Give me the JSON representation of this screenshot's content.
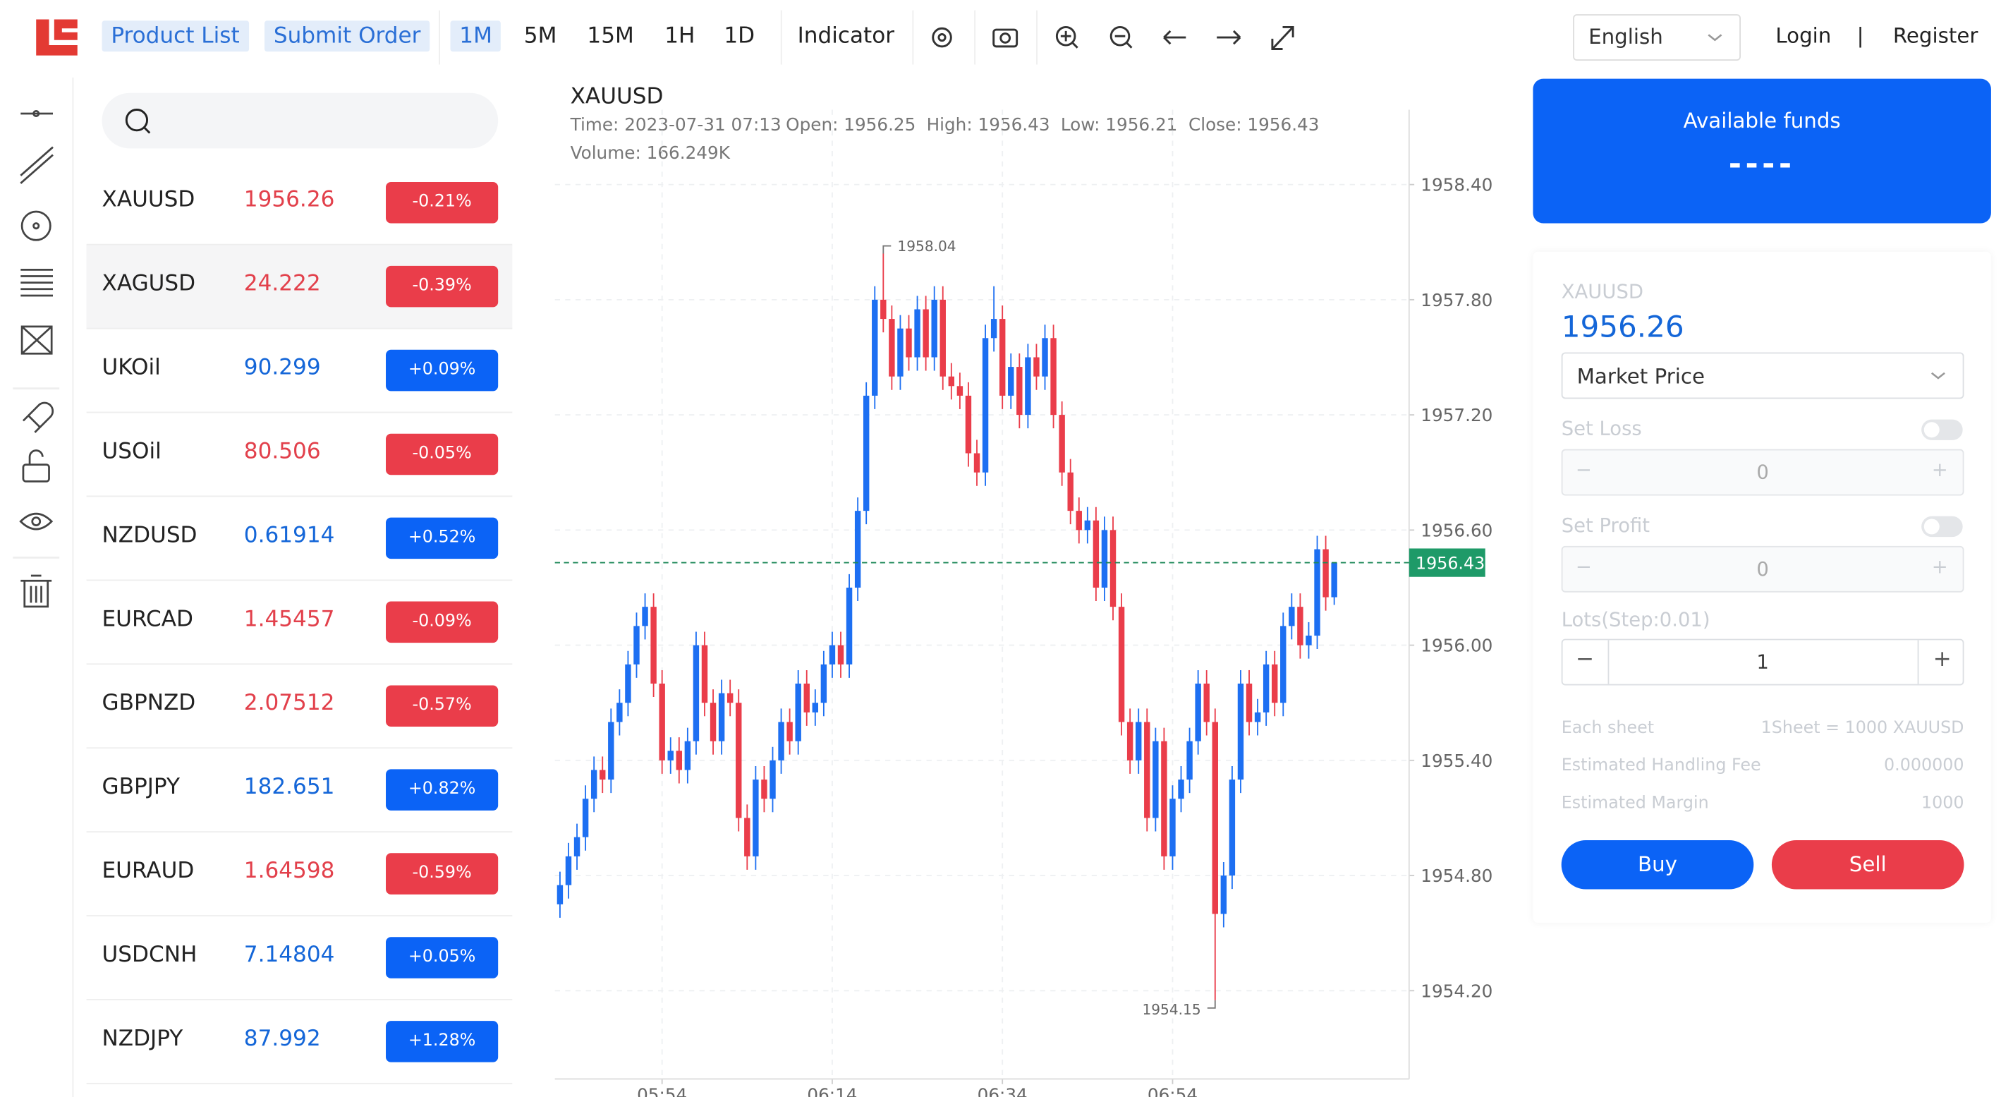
{
  "nav": {
    "product_list": "Product List",
    "submit_order": "Submit Order",
    "periods": [
      "1M",
      "5M",
      "15M",
      "1H",
      "1D"
    ],
    "indicator": "Indicator",
    "language": "English",
    "login": "Login",
    "separator": "|",
    "register": "Register"
  },
  "instruments": [
    {
      "name": "XAUUSD",
      "price": "1956.26",
      "change": "-0.21%"
    },
    {
      "name": "XAGUSD",
      "price": "24.222",
      "change": "-0.39%"
    },
    {
      "name": "UKOil",
      "price": "90.299",
      "change": "+0.09%"
    },
    {
      "name": "USOil",
      "price": "80.506",
      "change": "-0.05%"
    },
    {
      "name": "NZDUSD",
      "price": "0.61914",
      "change": "+0.52%"
    },
    {
      "name": "EURCAD",
      "price": "1.45457",
      "change": "-0.09%"
    },
    {
      "name": "GBPNZD",
      "price": "2.07512",
      "change": "-0.57%"
    },
    {
      "name": "GBPJPY",
      "price": "182.651",
      "change": "+0.82%"
    },
    {
      "name": "EURAUD",
      "price": "1.64598",
      "change": "-0.59%"
    },
    {
      "name": "USDCNH",
      "price": "7.14804",
      "change": "+0.05%"
    },
    {
      "name": "NZDJPY",
      "price": "87.992",
      "change": "+1.28%"
    }
  ],
  "chart_data": {
    "type": "candlestick",
    "title": "XAUUSD",
    "info": [
      "Time: 2023-07-31 07:13",
      "Open: 1956.25",
      "High: 1956.43",
      "Low: 1956.21",
      "Close: 1956.43"
    ],
    "volume": "Volume: 166.249K",
    "up_color": "#1d6ff2",
    "down_color": "#ea3d4a",
    "ylim": [
      1953.74,
      1958.79
    ],
    "yticks": [
      {
        "value": 1954.2,
        "label": "1954.20"
      },
      {
        "value": 1954.8,
        "label": "1954.80"
      },
      {
        "value": 1955.4,
        "label": "1955.40"
      },
      {
        "value": 1956,
        "label": "1956.00"
      },
      {
        "value": 1956.6,
        "label": "1956.60"
      },
      {
        "value": 1957.2,
        "label": "1957.20"
      },
      {
        "value": 1957.8,
        "label": "1957.80"
      },
      {
        "value": 1958.4,
        "label": "1958.40"
      }
    ],
    "xlim": [
      -0.6,
      99.8
    ],
    "xticks": [
      {
        "value": 12,
        "label": "05:54"
      },
      {
        "value": 32,
        "label": "06:14"
      },
      {
        "value": 52,
        "label": "06:34"
      },
      {
        "value": 72,
        "label": "06:54"
      }
    ],
    "grid": true,
    "max_marker": 1958.04,
    "min_marker": 1954.15,
    "last_price": 1956.43,
    "candles": [
      [
        1954.65,
        1954.82,
        1954.58,
        1954.75
      ],
      [
        1954.75,
        1954.97,
        1954.68,
        1954.9
      ],
      [
        1954.9,
        1955.07,
        1954.83,
        1955.0
      ],
      [
        1955.0,
        1955.27,
        1954.93,
        1955.2
      ],
      [
        1955.2,
        1955.42,
        1955.13,
        1955.35
      ],
      [
        1955.35,
        1955.42,
        1955.23,
        1955.3
      ],
      [
        1955.3,
        1955.67,
        1955.23,
        1955.6
      ],
      [
        1955.6,
        1955.77,
        1955.53,
        1955.7
      ],
      [
        1955.7,
        1955.97,
        1955.63,
        1955.9
      ],
      [
        1955.9,
        1956.17,
        1955.83,
        1956.1
      ],
      [
        1956.1,
        1956.27,
        1956.03,
        1956.2
      ],
      [
        1956.2,
        1956.27,
        1955.73,
        1955.8
      ],
      [
        1955.8,
        1955.87,
        1955.33,
        1955.4
      ],
      [
        1955.4,
        1955.52,
        1955.33,
        1955.45
      ],
      [
        1955.45,
        1955.52,
        1955.28,
        1955.35
      ],
      [
        1955.35,
        1955.57,
        1955.28,
        1955.5
      ],
      [
        1955.5,
        1956.07,
        1955.43,
        1956.0
      ],
      [
        1956.0,
        1956.07,
        1955.63,
        1955.7
      ],
      [
        1955.7,
        1955.77,
        1955.43,
        1955.5
      ],
      [
        1955.5,
        1955.82,
        1955.43,
        1955.75
      ],
      [
        1955.75,
        1955.82,
        1955.63,
        1955.7
      ],
      [
        1955.7,
        1955.77,
        1955.03,
        1955.1
      ],
      [
        1955.1,
        1955.17,
        1954.83,
        1954.9
      ],
      [
        1954.9,
        1955.37,
        1954.83,
        1955.3
      ],
      [
        1955.3,
        1955.37,
        1955.13,
        1955.2
      ],
      [
        1955.2,
        1955.47,
        1955.13,
        1955.4
      ],
      [
        1955.4,
        1955.67,
        1955.33,
        1955.6
      ],
      [
        1955.6,
        1955.67,
        1955.43,
        1955.5
      ],
      [
        1955.5,
        1955.87,
        1955.43,
        1955.8
      ],
      [
        1955.8,
        1955.87,
        1955.58,
        1955.65
      ],
      [
        1955.65,
        1955.77,
        1955.58,
        1955.7
      ],
      [
        1955.7,
        1955.97,
        1955.63,
        1955.9
      ],
      [
        1955.9,
        1956.07,
        1955.83,
        1956.0
      ],
      [
        1956.0,
        1956.07,
        1955.83,
        1955.9
      ],
      [
        1955.9,
        1956.37,
        1955.83,
        1956.3
      ],
      [
        1956.3,
        1956.77,
        1956.23,
        1956.7
      ],
      [
        1956.7,
        1957.37,
        1956.63,
        1957.3
      ],
      [
        1957.3,
        1957.87,
        1957.23,
        1957.8
      ],
      [
        1957.8,
        1958.04,
        1957.63,
        1957.7
      ],
      [
        1957.7,
        1957.77,
        1957.33,
        1957.4
      ],
      [
        1957.4,
        1957.72,
        1957.33,
        1957.65
      ],
      [
        1957.65,
        1957.72,
        1957.43,
        1957.5
      ],
      [
        1957.5,
        1957.82,
        1957.43,
        1957.75
      ],
      [
        1957.75,
        1957.82,
        1957.43,
        1957.5
      ],
      [
        1957.5,
        1957.87,
        1957.43,
        1957.8
      ],
      [
        1957.8,
        1957.87,
        1957.33,
        1957.4
      ],
      [
        1957.4,
        1957.47,
        1957.28,
        1957.35
      ],
      [
        1957.35,
        1957.42,
        1957.23,
        1957.3
      ],
      [
        1957.3,
        1957.37,
        1956.93,
        1957.0
      ],
      [
        1957.0,
        1957.07,
        1956.83,
        1956.9
      ],
      [
        1956.9,
        1957.67,
        1956.83,
        1957.6
      ],
      [
        1957.6,
        1957.87,
        1957.53,
        1957.7
      ],
      [
        1957.7,
        1957.77,
        1957.23,
        1957.3
      ],
      [
        1957.3,
        1957.52,
        1957.23,
        1957.45
      ],
      [
        1957.45,
        1957.52,
        1957.13,
        1957.2
      ],
      [
        1957.2,
        1957.57,
        1957.13,
        1957.5
      ],
      [
        1957.5,
        1957.57,
        1957.33,
        1957.4
      ],
      [
        1957.4,
        1957.67,
        1957.33,
        1957.6
      ],
      [
        1957.6,
        1957.67,
        1957.13,
        1957.2
      ],
      [
        1957.2,
        1957.27,
        1956.83,
        1956.9
      ],
      [
        1956.9,
        1956.97,
        1956.63,
        1956.7
      ],
      [
        1956.7,
        1956.77,
        1956.53,
        1956.6
      ],
      [
        1956.6,
        1956.72,
        1956.53,
        1956.65
      ],
      [
        1956.65,
        1956.72,
        1956.23,
        1956.3
      ],
      [
        1956.3,
        1956.67,
        1956.23,
        1956.6
      ],
      [
        1956.6,
        1956.67,
        1956.13,
        1956.2
      ],
      [
        1956.2,
        1956.27,
        1955.53,
        1955.6
      ],
      [
        1955.6,
        1955.67,
        1955.33,
        1955.4
      ],
      [
        1955.4,
        1955.67,
        1955.33,
        1955.6
      ],
      [
        1955.6,
        1955.67,
        1955.03,
        1955.1
      ],
      [
        1955.1,
        1955.57,
        1955.03,
        1955.5
      ],
      [
        1955.5,
        1955.57,
        1954.83,
        1954.9
      ],
      [
        1954.9,
        1955.27,
        1954.83,
        1955.2
      ],
      [
        1955.2,
        1955.37,
        1955.13,
        1955.3
      ],
      [
        1955.3,
        1955.57,
        1955.23,
        1955.5
      ],
      [
        1955.5,
        1955.87,
        1955.43,
        1955.8
      ],
      [
        1955.8,
        1955.87,
        1955.53,
        1955.6
      ],
      [
        1955.6,
        1955.67,
        1954.15,
        1954.6
      ],
      [
        1954.6,
        1954.87,
        1954.53,
        1954.8
      ],
      [
        1954.8,
        1955.37,
        1954.73,
        1955.3
      ],
      [
        1955.3,
        1955.87,
        1955.23,
        1955.8
      ],
      [
        1955.8,
        1955.87,
        1955.53,
        1955.6
      ],
      [
        1955.6,
        1955.72,
        1955.53,
        1955.65
      ],
      [
        1955.65,
        1955.97,
        1955.58,
        1955.9
      ],
      [
        1955.9,
        1955.97,
        1955.63,
        1955.7
      ],
      [
        1955.7,
        1956.17,
        1955.63,
        1956.1
      ],
      [
        1956.1,
        1956.27,
        1956.03,
        1956.2
      ],
      [
        1956.2,
        1956.27,
        1955.93,
        1956.0
      ],
      [
        1956.0,
        1956.12,
        1955.93,
        1956.05
      ],
      [
        1956.05,
        1956.57,
        1955.98,
        1956.5
      ],
      [
        1956.5,
        1956.57,
        1956.18,
        1956.25
      ],
      [
        1956.25,
        1956.43,
        1956.21,
        1956.43
      ]
    ]
  },
  "funds": {
    "label": "Available funds",
    "value": "----"
  },
  "order": {
    "symbol": "XAUUSD",
    "price": "1956.26",
    "type": "Market Price",
    "set_loss": "Set Loss",
    "loss_value": "0",
    "set_profit": "Set Profit",
    "profit_value": "0",
    "lots_label": "Lots(Step:0.01)",
    "lots_value": "1",
    "details": [
      {
        "label": "Each sheet",
        "value": "1Sheet = 1000 XAUUSD"
      },
      {
        "label": "Estimated Handling Fee",
        "value": "0.000000"
      },
      {
        "label": "Estimated Margin",
        "value": "1000"
      }
    ],
    "buy": "Buy",
    "sell": "Sell"
  }
}
